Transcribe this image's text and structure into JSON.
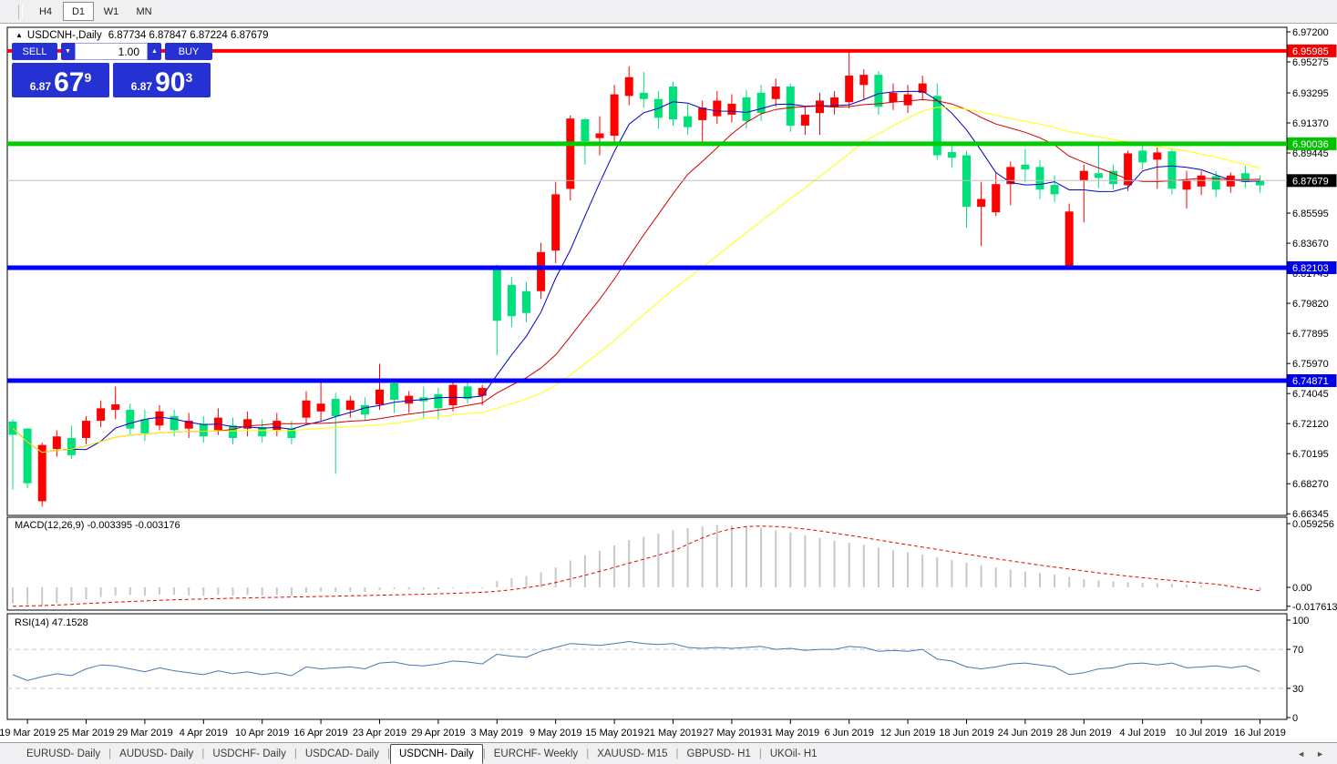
{
  "toolbar": {
    "timeframes": [
      {
        "label": "H4",
        "active": false
      },
      {
        "label": "D1",
        "active": true
      },
      {
        "label": "W1",
        "active": false
      },
      {
        "label": "MN",
        "active": false
      }
    ]
  },
  "chart_title": {
    "collapse_arrow": "▲",
    "symbol": "USDCNH-,Daily",
    "ohlc": "6.87734 6.87847 6.87224 6.87679"
  },
  "trade_panel": {
    "sell_label": "SELL",
    "buy_label": "BUY",
    "volume": "1.00",
    "spin_down": "▼",
    "spin_up": "▲",
    "sell_price": {
      "small": "6.87",
      "big": "67",
      "sup": "9"
    },
    "buy_price": {
      "small": "6.87",
      "big": "90",
      "sup": "3"
    }
  },
  "indicator_labels": {
    "macd": "MACD(12,26,9) -0.003395 -0.003176",
    "rsi": "RSI(14) 47.1528"
  },
  "tab_bar": {
    "scroll_left": "◄",
    "scroll_right": "►",
    "tabs": [
      {
        "label": "EURUSD- Daily",
        "active": false
      },
      {
        "label": "AUDUSD- Daily",
        "active": false
      },
      {
        "label": "USDCHF- Daily",
        "active": false
      },
      {
        "label": "USDCAD- Daily",
        "active": false
      },
      {
        "label": "USDCNH- Daily",
        "active": true
      },
      {
        "label": "EURCHF- Weekly",
        "active": false
      },
      {
        "label": "XAUUSD- M15",
        "active": false
      },
      {
        "label": "GBPUSD- H1",
        "active": false
      },
      {
        "label": "UKOil- H1",
        "active": false
      }
    ]
  },
  "chart_data": {
    "type": "candlestick",
    "symbol": "USDCNH",
    "timeframe": "Daily",
    "current_price": 6.87679,
    "price_axis_ticks": [
      {
        "label": "6.97200",
        "price": 6.972
      },
      {
        "label": "6.95275",
        "price": 6.95275
      },
      {
        "label": "6.93295",
        "price": 6.93295
      },
      {
        "label": "6.91370",
        "price": 6.9137
      },
      {
        "label": "6.89445",
        "price": 6.89445
      },
      {
        "label": "6.85595",
        "price": 6.85595
      },
      {
        "label": "6.83670",
        "price": 6.8367
      },
      {
        "label": "6.81745",
        "price": 6.81745
      },
      {
        "label": "6.79820",
        "price": 6.7982
      },
      {
        "label": "6.77895",
        "price": 6.77895
      },
      {
        "label": "6.75970",
        "price": 6.7597
      },
      {
        "label": "6.74045",
        "price": 6.74045
      },
      {
        "label": "6.72120",
        "price": 6.7212
      },
      {
        "label": "6.70195",
        "price": 6.70195
      },
      {
        "label": "6.68270",
        "price": 6.6827
      },
      {
        "label": "6.66345",
        "price": 6.66345
      }
    ],
    "price_line_labels": [
      {
        "label": "6.95985",
        "price": 6.95985,
        "bg": "#F00000",
        "fg": "#FFFFFF",
        "line_color": "#FF0000",
        "line_width": 4
      },
      {
        "label": "6.90036",
        "price": 6.90036,
        "bg": "#00C400",
        "fg": "#FFFFFF",
        "line_color": "#00CC00",
        "line_width": 5
      },
      {
        "label": "6.87679",
        "price": 6.87679,
        "bg": "#000000",
        "fg": "#FFFFFF",
        "line_color": "#C0C0C0",
        "line_width": 1
      },
      {
        "label": "6.82103",
        "price": 6.82103,
        "bg": "#0000E8",
        "fg": "#FFFFFF",
        "line_color": "#0000FF",
        "line_width": 5
      },
      {
        "label": "6.74871",
        "price": 6.74871,
        "bg": "#0000E8",
        "fg": "#FFFFFF",
        "line_color": "#0000FF",
        "line_width": 5
      }
    ],
    "candle_colors": {
      "r": "#FF0000",
      "g": "#00E07B"
    },
    "candles": [
      [
        6.724,
        6.679,
        6.7225,
        6.714,
        "g"
      ],
      [
        6.7185,
        6.68,
        6.718,
        6.683,
        "g"
      ],
      [
        6.709,
        6.668,
        6.7075,
        6.6715,
        "r"
      ],
      [
        6.717,
        6.7,
        6.713,
        6.705,
        "r"
      ],
      [
        6.72,
        6.6985,
        6.712,
        6.701,
        "g"
      ],
      [
        6.726,
        6.708,
        6.723,
        6.712,
        "r"
      ],
      [
        6.736,
        6.719,
        6.731,
        6.723,
        "r"
      ],
      [
        6.745,
        6.724,
        6.7335,
        6.73,
        "r"
      ],
      [
        6.734,
        6.714,
        6.73,
        6.718,
        "g"
      ],
      [
        6.73,
        6.71,
        6.724,
        6.715,
        "g"
      ],
      [
        6.733,
        6.717,
        6.729,
        6.72,
        "r"
      ],
      [
        6.73,
        6.713,
        6.726,
        6.717,
        "g"
      ],
      [
        6.728,
        6.712,
        6.723,
        6.718,
        "r"
      ],
      [
        6.726,
        6.709,
        6.721,
        6.713,
        "g"
      ],
      [
        6.731,
        6.714,
        6.725,
        6.717,
        "r"
      ],
      [
        6.725,
        6.708,
        6.72,
        6.712,
        "g"
      ],
      [
        6.729,
        6.713,
        6.724,
        6.718,
        "r"
      ],
      [
        6.724,
        6.709,
        6.719,
        6.713,
        "g"
      ],
      [
        6.728,
        6.713,
        6.723,
        6.717,
        "r"
      ],
      [
        6.723,
        6.708,
        6.718,
        6.712,
        "g"
      ],
      [
        6.742,
        6.721,
        6.736,
        6.725,
        "r"
      ],
      [
        6.748,
        6.723,
        6.734,
        6.729,
        "r"
      ],
      [
        6.741,
        6.689,
        6.737,
        6.726,
        "g"
      ],
      [
        6.739,
        6.725,
        6.736,
        6.73,
        "r"
      ],
      [
        6.738,
        6.723,
        6.733,
        6.727,
        "g"
      ],
      [
        6.7595,
        6.73,
        6.743,
        6.7335,
        "r"
      ],
      [
        6.748,
        6.728,
        6.747,
        6.7365,
        "g"
      ],
      [
        6.742,
        6.728,
        6.739,
        6.734,
        "r"
      ],
      [
        6.745,
        6.725,
        6.738,
        6.7355,
        "g"
      ],
      [
        6.744,
        6.724,
        6.74,
        6.731,
        "g"
      ],
      [
        6.748,
        6.729,
        6.746,
        6.733,
        "r"
      ],
      [
        6.748,
        6.734,
        6.745,
        6.737,
        "g"
      ],
      [
        6.746,
        6.733,
        6.744,
        6.739,
        "r"
      ],
      [
        6.823,
        6.765,
        6.821,
        6.787,
        "g"
      ],
      [
        6.815,
        6.783,
        6.81,
        6.79,
        "g"
      ],
      [
        6.812,
        6.786,
        6.806,
        6.792,
        "g"
      ],
      [
        6.837,
        6.801,
        6.831,
        6.806,
        "r"
      ],
      [
        6.876,
        6.824,
        6.868,
        6.832,
        "r"
      ],
      [
        6.9185,
        6.864,
        6.9165,
        6.8715,
        "r"
      ],
      [
        6.917,
        6.887,
        6.916,
        6.902,
        "g"
      ],
      [
        6.918,
        6.893,
        6.907,
        6.904,
        "r"
      ],
      [
        6.938,
        6.901,
        6.932,
        6.9055,
        "r"
      ],
      [
        6.95,
        6.925,
        6.943,
        6.931,
        "r"
      ],
      [
        6.9463,
        6.9235,
        6.933,
        6.929,
        "g"
      ],
      [
        6.934,
        6.91,
        6.929,
        6.917,
        "g"
      ],
      [
        6.94,
        6.912,
        6.937,
        6.916,
        "g"
      ],
      [
        6.926,
        6.906,
        6.918,
        6.911,
        "g"
      ],
      [
        6.928,
        6.9,
        6.9235,
        6.9155,
        "r"
      ],
      [
        6.934,
        6.913,
        6.928,
        6.918,
        "r"
      ],
      [
        6.932,
        6.914,
        6.926,
        6.919,
        "r"
      ],
      [
        6.935,
        6.91,
        6.93,
        6.915,
        "g"
      ],
      [
        6.938,
        6.915,
        6.933,
        6.92,
        "g"
      ],
      [
        6.942,
        6.924,
        6.937,
        6.929,
        "r"
      ],
      [
        6.939,
        6.908,
        6.937,
        6.912,
        "g"
      ],
      [
        6.924,
        6.906,
        6.919,
        6.912,
        "r"
      ],
      [
        6.933,
        6.906,
        6.928,
        6.92,
        "r"
      ],
      [
        6.934,
        6.919,
        6.93,
        6.924,
        "r"
      ],
      [
        6.96,
        6.923,
        6.944,
        6.927,
        "r"
      ],
      [
        6.948,
        6.929,
        6.9445,
        6.938,
        "r"
      ],
      [
        6.947,
        6.919,
        6.9445,
        6.924,
        "g"
      ],
      [
        6.939,
        6.922,
        6.933,
        6.927,
        "r"
      ],
      [
        6.938,
        6.92,
        6.932,
        6.925,
        "r"
      ],
      [
        6.944,
        6.928,
        6.939,
        6.933,
        "r"
      ],
      [
        6.939,
        6.89,
        6.931,
        6.893,
        "g"
      ],
      [
        6.901,
        6.885,
        6.895,
        6.8915,
        "g"
      ],
      [
        6.896,
        6.8465,
        6.893,
        6.86,
        "g"
      ],
      [
        6.876,
        6.835,
        6.865,
        6.86,
        "r"
      ],
      [
        6.882,
        6.854,
        6.8745,
        6.8565,
        "r"
      ],
      [
        6.889,
        6.861,
        6.8855,
        6.8745,
        "r"
      ],
      [
        6.897,
        6.876,
        6.887,
        6.884,
        "g"
      ],
      [
        6.89,
        6.865,
        6.8855,
        6.871,
        "g"
      ],
      [
        6.88,
        6.863,
        6.874,
        6.868,
        "g"
      ],
      [
        6.862,
        6.821,
        6.857,
        6.822,
        "r"
      ],
      [
        6.887,
        6.85,
        6.883,
        6.877,
        "r"
      ],
      [
        6.9,
        6.872,
        6.8815,
        6.8785,
        "g"
      ],
      [
        6.887,
        6.871,
        6.883,
        6.8745,
        "g"
      ],
      [
        6.896,
        6.87,
        6.8942,
        6.8738,
        "r"
      ],
      [
        6.899,
        6.884,
        6.896,
        6.8884,
        "g"
      ],
      [
        6.898,
        6.8715,
        6.8948,
        6.8902,
        "r"
      ],
      [
        6.8975,
        6.868,
        6.8955,
        6.8716,
        "g"
      ],
      [
        6.883,
        6.859,
        6.877,
        6.871,
        "r"
      ],
      [
        6.883,
        6.8675,
        6.88,
        6.873,
        "r"
      ],
      [
        6.883,
        6.866,
        6.8797,
        6.871,
        "g"
      ],
      [
        6.882,
        6.869,
        6.88,
        6.873,
        "r"
      ],
      [
        6.886,
        6.872,
        6.8815,
        6.8758,
        "g"
      ],
      [
        6.88,
        6.869,
        6.877,
        6.8737,
        "g"
      ]
    ],
    "ma_lines": [
      {
        "name": "ma-fast",
        "color": "#0000C8",
        "window": 5
      },
      {
        "name": "ma-mid",
        "color": "#D40000",
        "window": 14
      },
      {
        "name": "ma-slow",
        "color": "#FFFF00",
        "window": 26
      }
    ],
    "date_ticks": [
      {
        "i": 1,
        "label": "19 Mar 2019"
      },
      {
        "i": 5,
        "label": "25 Mar 2019"
      },
      {
        "i": 9,
        "label": "29 Mar 2019"
      },
      {
        "i": 13,
        "label": "4 Apr 2019"
      },
      {
        "i": 17,
        "label": "10 Apr 2019"
      },
      {
        "i": 21,
        "label": "16 Apr 2019"
      },
      {
        "i": 25,
        "label": "23 Apr 2019"
      },
      {
        "i": 29,
        "label": "29 Apr 2019"
      },
      {
        "i": 33,
        "label": "3 May 2019"
      },
      {
        "i": 37,
        "label": "9 May 2019"
      },
      {
        "i": 41,
        "label": "15 May 2019"
      },
      {
        "i": 45,
        "label": "21 May 2019"
      },
      {
        "i": 49,
        "label": "27 May 2019"
      },
      {
        "i": 53,
        "label": "31 May 2019"
      },
      {
        "i": 57,
        "label": "6 Jun 2019"
      },
      {
        "i": 61,
        "label": "12 Jun 2019"
      },
      {
        "i": 65,
        "label": "18 Jun 2019"
      },
      {
        "i": 69,
        "label": "24 Jun 2019"
      },
      {
        "i": 73,
        "label": "28 Jun 2019"
      },
      {
        "i": 77,
        "label": "4 Jul 2019"
      },
      {
        "i": 81,
        "label": "10 Jul 2019"
      },
      {
        "i": 85,
        "label": "16 Jul 2019"
      }
    ],
    "macd": {
      "params": "12,26,9",
      "value_main": -0.003395,
      "value_signal": -0.003176,
      "hist_color": "#C8C8C8",
      "signal_color": "#E80000",
      "axis_labels": [
        {
          "label": "0.059256",
          "value": 0.059256
        },
        {
          "label": "0.00",
          "value": 0
        },
        {
          "label": "-0.017613",
          "value": -0.017613
        }
      ],
      "hist": [
        -0.015,
        -0.016,
        -0.0176,
        -0.015,
        -0.0135,
        -0.011,
        -0.009,
        -0.0075,
        -0.007,
        -0.0078,
        -0.0065,
        -0.007,
        -0.0075,
        -0.008,
        -0.007,
        -0.0078,
        -0.007,
        -0.0075,
        -0.007,
        -0.0078,
        -0.005,
        -0.004,
        -0.0042,
        -0.004,
        -0.0042,
        -0.0025,
        -0.0015,
        -0.002,
        -0.0022,
        -0.0018,
        -0.0008,
        -0.0004,
        -0.0008,
        0.006,
        0.0085,
        0.0105,
        0.014,
        0.0185,
        0.025,
        0.03,
        0.034,
        0.039,
        0.044,
        0.047,
        0.05,
        0.053,
        0.055,
        0.0565,
        0.058,
        0.0575,
        0.0565,
        0.055,
        0.053,
        0.051,
        0.0485,
        0.046,
        0.0435,
        0.0415,
        0.0395,
        0.037,
        0.0345,
        0.0325,
        0.0305,
        0.028,
        0.0255,
        0.023,
        0.0205,
        0.0185,
        0.0165,
        0.0148,
        0.0132,
        0.0118,
        0.0098,
        0.0078,
        0.0064,
        0.0055,
        0.0047,
        0.0042,
        0.0038,
        0.0032,
        0.0025,
        0.0015,
        0.0005,
        -0.0005,
        -0.002,
        -0.0034
      ],
      "signal": [
        -0.0176,
        -0.0173,
        -0.017,
        -0.0164,
        -0.0158,
        -0.0151,
        -0.0145,
        -0.0138,
        -0.0132,
        -0.0126,
        -0.012,
        -0.0116,
        -0.0112,
        -0.0108,
        -0.0105,
        -0.0101,
        -0.0098,
        -0.0095,
        -0.0093,
        -0.009,
        -0.0088,
        -0.0085,
        -0.0082,
        -0.0079,
        -0.0076,
        -0.0073,
        -0.007,
        -0.0067,
        -0.0064,
        -0.006,
        -0.0056,
        -0.0051,
        -0.0046,
        -0.0036,
        -0.0022,
        -0.0004,
        0.0018,
        0.0045,
        0.0078,
        0.0112,
        0.0148,
        0.0186,
        0.0224,
        0.0262,
        0.03,
        0.0336,
        0.04,
        0.046,
        0.051,
        0.0545,
        0.0565,
        0.057,
        0.0566,
        0.0556,
        0.0542,
        0.0525,
        0.0505,
        0.0484,
        0.0462,
        0.044,
        0.0418,
        0.0396,
        0.0374,
        0.0352,
        0.033,
        0.0308,
        0.0287,
        0.0266,
        0.0246,
        0.0226,
        0.0207,
        0.0188,
        0.017,
        0.0152,
        0.0135,
        0.0119,
        0.0104,
        0.009,
        0.0077,
        0.0064,
        0.0052,
        0.0041,
        0.003,
        0.001,
        -0.0012,
        -0.0032
      ]
    },
    "rsi": {
      "period": 14,
      "value": 47.1528,
      "line_color": "#4878B0",
      "level_color": "#C8C8C8",
      "levels": [
        70,
        30
      ],
      "axis_labels": [
        {
          "label": "100",
          "value": 100
        },
        {
          "label": "70",
          "value": 70
        },
        {
          "label": "30",
          "value": 30
        },
        {
          "label": "0",
          "value": 0
        }
      ],
      "values": [
        44,
        38,
        42,
        45,
        43,
        50,
        54,
        53,
        50,
        47,
        51,
        48,
        46,
        44,
        48,
        45,
        47,
        44,
        46,
        43,
        52,
        50,
        51,
        52,
        50,
        56,
        57,
        54,
        53,
        55,
        58,
        57,
        55,
        65,
        63,
        62,
        68,
        72,
        76,
        75,
        74,
        76,
        78,
        76,
        75,
        76,
        72,
        71,
        72,
        71,
        72,
        73,
        70,
        71,
        69,
        70,
        70,
        73,
        72,
        68,
        69,
        68,
        70,
        60,
        58,
        52,
        50,
        52,
        55,
        56,
        54,
        52,
        44,
        46,
        50,
        51,
        55,
        56,
        54,
        56,
        51,
        52,
        53,
        51,
        53,
        47.15
      ]
    }
  }
}
